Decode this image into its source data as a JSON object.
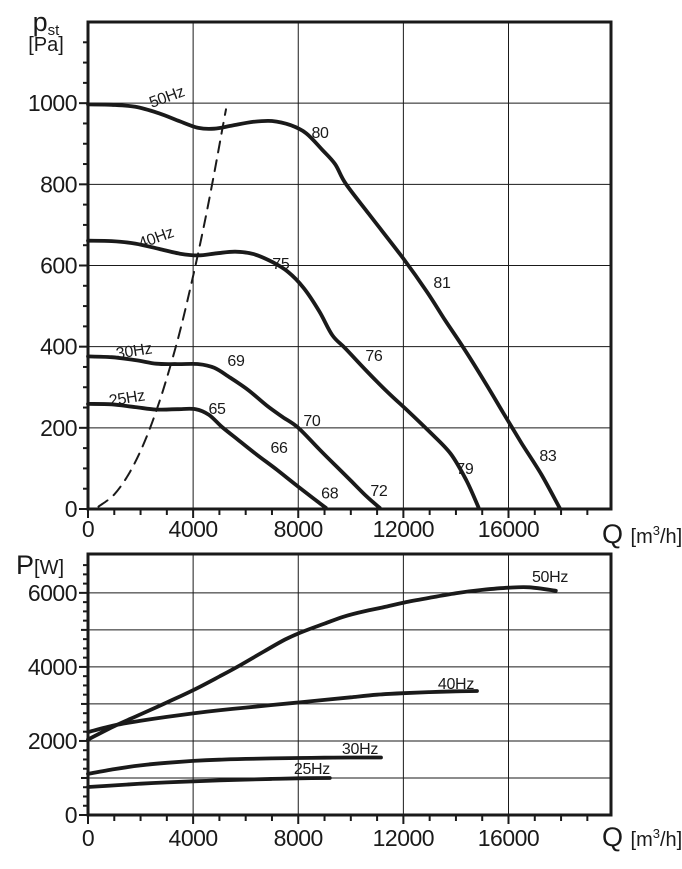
{
  "figure": {
    "background": "#ffffff",
    "ink_color": "#1a1a1a"
  },
  "chart_data": [
    {
      "id": "pressure",
      "type": "line",
      "title": "Fan static pressure vs volume flow",
      "x_axis": {
        "symbol": "Q",
        "unit_prefix": "[m",
        "unit_sup": "3",
        "unit_suffix": "/h]",
        "lim": [
          0,
          19900
        ],
        "labeled_ticks": [
          0,
          4000,
          8000,
          12000,
          16000
        ],
        "minor_tick_step": 1000,
        "gridlines": [
          4000,
          8000,
          12000,
          16000
        ]
      },
      "y_axis": {
        "symbol": "p",
        "symbol_sub": "st",
        "unit": "[Pa]",
        "lim": [
          0,
          1200
        ],
        "labeled_ticks": [
          0,
          200,
          400,
          600,
          800,
          1000
        ],
        "minor_tick_step": 50,
        "medium_tick_multiple": 200,
        "gridlines": [
          200,
          400,
          600,
          800,
          1000
        ]
      },
      "series": [
        {
          "name": "50Hz",
          "line": "solid",
          "points": [
            [
              0,
              997
            ],
            [
              900,
              996
            ],
            [
              1800,
              991
            ],
            [
              2700,
              975
            ],
            [
              3500,
              955
            ],
            [
              4200,
              939
            ],
            [
              4800,
              937
            ],
            [
              5500,
              945
            ],
            [
              6300,
              954
            ],
            [
              7000,
              956
            ],
            [
              7700,
              946
            ],
            [
              8300,
              926
            ],
            [
              8900,
              886
            ],
            [
              9400,
              850
            ],
            [
              9800,
              802
            ],
            [
              10700,
              726
            ],
            [
              12000,
              617
            ],
            [
              12900,
              535
            ],
            [
              13600,
              464
            ],
            [
              14300,
              396
            ],
            [
              15100,
              313
            ],
            [
              15800,
              237
            ],
            [
              16500,
              162
            ],
            [
              17250,
              85
            ],
            [
              17950,
              2
            ]
          ]
        },
        {
          "name": "40Hz",
          "line": "solid",
          "points": [
            [
              0,
              661
            ],
            [
              900,
              660
            ],
            [
              1800,
              654
            ],
            [
              2700,
              641
            ],
            [
              3500,
              629
            ],
            [
              4200,
              625
            ],
            [
              4900,
              630
            ],
            [
              5600,
              634
            ],
            [
              6300,
              628
            ],
            [
              7000,
              609
            ],
            [
              7600,
              585
            ],
            [
              8200,
              545
            ],
            [
              8800,
              487
            ],
            [
              9300,
              428
            ],
            [
              9800,
              395
            ],
            [
              10600,
              340
            ],
            [
              11400,
              288
            ],
            [
              12200,
              240
            ],
            [
              13000,
              190
            ],
            [
              13800,
              136
            ],
            [
              14400,
              70
            ],
            [
              14860,
              4
            ]
          ]
        },
        {
          "name": "30Hz",
          "line": "solid",
          "points": [
            [
              0,
              376
            ],
            [
              900,
              374
            ],
            [
              1800,
              367
            ],
            [
              2600,
              358
            ],
            [
              3400,
              357
            ],
            [
              4200,
              357
            ],
            [
              4800,
              348
            ],
            [
              5400,
              324
            ],
            [
              6100,
              293
            ],
            [
              6800,
              255
            ],
            [
              7400,
              227
            ],
            [
              8000,
              200
            ],
            [
              8800,
              147
            ],
            [
              9500,
              102
            ],
            [
              10000,
              70
            ],
            [
              10600,
              31
            ],
            [
              11100,
              3
            ]
          ]
        },
        {
          "name": "25Hz",
          "line": "solid",
          "points": [
            [
              0,
              259
            ],
            [
              900,
              258
            ],
            [
              1800,
              251
            ],
            [
              2600,
              245
            ],
            [
              3400,
              246
            ],
            [
              4100,
              246
            ],
            [
              4600,
              232
            ],
            [
              5100,
              202
            ],
            [
              5700,
              171
            ],
            [
              6400,
              135
            ],
            [
              7200,
              96
            ],
            [
              8000,
              55
            ],
            [
              8600,
              25
            ],
            [
              9050,
              3
            ]
          ]
        },
        {
          "name": "system-resistance-curve",
          "line": "dashed",
          "points": [
            [
              400,
              6
            ],
            [
              1000,
              36
            ],
            [
              1600,
              92
            ],
            [
              2200,
              173
            ],
            [
              2800,
              281
            ],
            [
              3400,
              414
            ],
            [
              3900,
              546
            ],
            [
              4400,
              694
            ],
            [
              4800,
              827
            ],
            [
              5100,
              932
            ],
            [
              5250,
              985
            ]
          ]
        }
      ],
      "curve_labels": [
        {
          "text": "50Hz",
          "x": 3000,
          "y": 1015,
          "rotate": -20
        },
        {
          "text": "40Hz",
          "x": 2590,
          "y": 668,
          "rotate": -20
        },
        {
          "text": "30Hz",
          "x": 1750,
          "y": 389,
          "rotate": -9
        },
        {
          "text": "25Hz",
          "x": 1480,
          "y": 273,
          "rotate": -9
        }
      ],
      "point_labels": [
        {
          "text": "80",
          "x": 8830,
          "y": 926
        },
        {
          "text": "81",
          "x": 13470,
          "y": 557
        },
        {
          "text": "83",
          "x": 17500,
          "y": 131
        },
        {
          "text": "75",
          "x": 7340,
          "y": 604
        },
        {
          "text": "76",
          "x": 10880,
          "y": 377
        },
        {
          "text": "79",
          "x": 14340,
          "y": 99
        },
        {
          "text": "69",
          "x": 5630,
          "y": 365
        },
        {
          "text": "70",
          "x": 8520,
          "y": 217
        },
        {
          "text": "72",
          "x": 11070,
          "y": 44
        },
        {
          "text": "65",
          "x": 4910,
          "y": 246
        },
        {
          "text": "66",
          "x": 7270,
          "y": 150
        },
        {
          "text": "68",
          "x": 9200,
          "y": 38
        }
      ]
    },
    {
      "id": "power",
      "type": "line",
      "title": "Fan power input vs volume flow",
      "x_axis": {
        "symbol": "Q",
        "unit_prefix": "[m",
        "unit_sup": "3",
        "unit_suffix": "/h]",
        "lim": [
          0,
          19900
        ],
        "labeled_ticks": [
          0,
          4000,
          8000,
          12000,
          16000
        ],
        "minor_tick_step": 1000,
        "gridlines": [
          4000,
          8000,
          12000,
          16000
        ]
      },
      "y_axis": {
        "symbol": "P",
        "symbol_sub": "",
        "unit": "[W]",
        "lim": [
          0,
          7050
        ],
        "labeled_ticks": [
          0,
          2000,
          4000,
          6000
        ],
        "minor_tick_step": 250,
        "medium_tick_multiple": 1000,
        "gridlines": [
          1000,
          2000,
          3000,
          4000,
          5000,
          6000
        ]
      },
      "series": [
        {
          "name": "50Hz",
          "line": "solid",
          "points": [
            [
              0,
              2040
            ],
            [
              1000,
              2400
            ],
            [
              2000,
              2720
            ],
            [
              3000,
              3040
            ],
            [
              4000,
              3370
            ],
            [
              5000,
              3740
            ],
            [
              5800,
              4050
            ],
            [
              6700,
              4420
            ],
            [
              7500,
              4740
            ],
            [
              8200,
              4960
            ],
            [
              9000,
              5170
            ],
            [
              9700,
              5350
            ],
            [
              10500,
              5500
            ],
            [
              11300,
              5620
            ],
            [
              12100,
              5750
            ],
            [
              13000,
              5870
            ],
            [
              14000,
              5990
            ],
            [
              15000,
              6080
            ],
            [
              16000,
              6140
            ],
            [
              16800,
              6150
            ],
            [
              17800,
              6060
            ]
          ]
        },
        {
          "name": "40Hz",
          "line": "solid",
          "points": [
            [
              0,
              2240
            ],
            [
              1000,
              2420
            ],
            [
              2000,
              2545
            ],
            [
              3000,
              2650
            ],
            [
              4000,
              2745
            ],
            [
              5000,
              2830
            ],
            [
              6000,
              2900
            ],
            [
              7000,
              2970
            ],
            [
              8000,
              3040
            ],
            [
              9000,
              3110
            ],
            [
              10000,
              3180
            ],
            [
              11000,
              3250
            ],
            [
              12000,
              3290
            ],
            [
              13000,
              3320
            ],
            [
              14000,
              3340
            ],
            [
              14800,
              3350
            ]
          ]
        },
        {
          "name": "30Hz",
          "line": "solid",
          "points": [
            [
              0,
              1110
            ],
            [
              1000,
              1240
            ],
            [
              2000,
              1340
            ],
            [
              3000,
              1410
            ],
            [
              4000,
              1460
            ],
            [
              5000,
              1495
            ],
            [
              6000,
              1515
            ],
            [
              7000,
              1530
            ],
            [
              8000,
              1540
            ],
            [
              9000,
              1548
            ],
            [
              10000,
              1552
            ],
            [
              11150,
              1552
            ]
          ]
        },
        {
          "name": "25Hz",
          "line": "solid",
          "points": [
            [
              0,
              755
            ],
            [
              1000,
              800
            ],
            [
              2000,
              845
            ],
            [
              3000,
              880
            ],
            [
              4000,
              910
            ],
            [
              5000,
              935
            ],
            [
              6000,
              955
            ],
            [
              7000,
              975
            ],
            [
              8000,
              990
            ],
            [
              9200,
              1000
            ]
          ]
        }
      ],
      "curve_labels": [
        {
          "text": "50Hz",
          "x": 17580,
          "y": 6430,
          "rotate": 0
        },
        {
          "text": "40Hz",
          "x": 14000,
          "y": 3540,
          "rotate": 0
        },
        {
          "text": "30Hz",
          "x": 10350,
          "y": 1780,
          "rotate": 0
        },
        {
          "text": "25Hz",
          "x": 8520,
          "y": 1240,
          "rotate": 0
        }
      ],
      "point_labels": []
    }
  ]
}
